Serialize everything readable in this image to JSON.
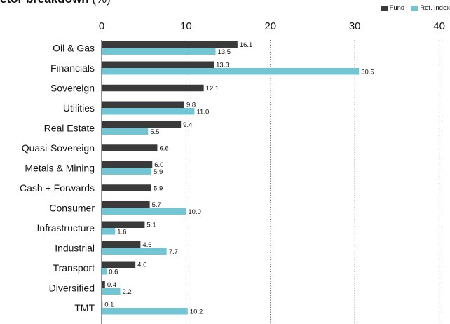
{
  "title": {
    "bold": "ctor breakdown",
    "rest": " (%)"
  },
  "colors": {
    "fund": "#3a3a3a",
    "index": "#72c5d3"
  },
  "legend": [
    {
      "name": "Fund",
      "color": "#3a3a3a"
    },
    {
      "name": "Ref. index",
      "color": "#72c5d3"
    }
  ],
  "chart_data": {
    "type": "bar",
    "orientation": "horizontal",
    "title": "ctor breakdown (%)",
    "xlim": [
      0,
      40
    ],
    "x_ticks": [
      0,
      10,
      20,
      30,
      40
    ],
    "grid": "vertical dotted lines at 10, 20, 30, 40",
    "legend_position": "top-right",
    "categories": [
      "Oil & Gas",
      "Financials",
      "Sovereign",
      "Utilities",
      "Real Estate",
      "Quasi-Sovereign",
      "Metals & Mining",
      "Cash + Forwards",
      "Consumer",
      "Infrastructure",
      "Industrial",
      "Transport",
      "Diversified",
      "TMT"
    ],
    "series": [
      {
        "name": "Fund",
        "color": "#3a3a3a",
        "values": [
          16.1,
          13.3,
          12.1,
          9.8,
          9.4,
          6.6,
          6.0,
          5.9,
          5.7,
          5.1,
          4.6,
          4.0,
          0.4,
          0.1
        ],
        "labels": [
          "16.1",
          "13.3",
          "12.1",
          "9.8",
          "9.4",
          "6.6",
          "6.0",
          "5.9",
          "5.7",
          "5.1",
          "4.6",
          "4.0",
          "0.4",
          "0.1"
        ]
      },
      {
        "name": "Ref. index",
        "color": "#72c5d3",
        "values": [
          13.5,
          30.5,
          null,
          11.0,
          5.5,
          null,
          5.9,
          null,
          10.0,
          1.6,
          7.7,
          0.6,
          2.2,
          10.2
        ],
        "labels": [
          "13.5",
          "30.5",
          "",
          "11.0",
          "5.5",
          "",
          "5.9",
          "",
          "10.0",
          "1.6",
          "7.7",
          "0.6",
          "2.2",
          "10.2"
        ]
      }
    ]
  }
}
